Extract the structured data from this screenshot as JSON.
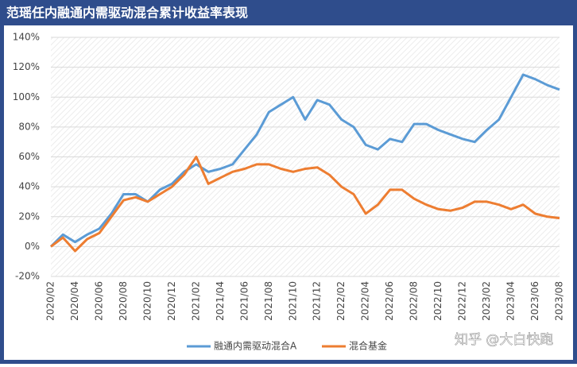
{
  "chart_data": {
    "type": "line",
    "title": "范瑶任内融通内需驱动混合累计收益率表现",
    "categories": [
      "2020/02",
      null,
      "2020/04",
      null,
      "2020/06",
      null,
      "2020/08",
      null,
      "2020/10",
      null,
      "2020/12",
      null,
      "2021/02",
      null,
      "2021/04",
      null,
      "2021/06",
      null,
      "2021/08",
      null,
      "2021/10",
      null,
      "2021/12",
      null,
      "2022/02",
      null,
      "2022/04",
      null,
      "2022/06",
      null,
      "2022/08",
      null,
      "2022/10",
      null,
      "2022/12",
      null,
      "2023/02",
      null,
      "2023/04",
      null,
      "2023/06",
      null,
      "2023/08"
    ],
    "series": [
      {
        "name": "融通内需驱动混合A",
        "color": "#5b9bd5",
        "values": [
          0,
          8,
          3,
          8,
          12,
          22,
          35,
          35,
          30,
          38,
          42,
          50,
          55,
          50,
          52,
          55,
          65,
          75,
          90,
          95,
          100,
          85,
          98,
          95,
          85,
          80,
          68,
          65,
          72,
          70,
          82,
          82,
          78,
          75,
          72,
          70,
          78,
          85,
          100,
          115,
          112,
          108,
          105
        ]
      },
      {
        "name": "混合基金",
        "color": "#ed7d31",
        "values": [
          0,
          6,
          -3,
          5,
          9,
          20,
          31,
          33,
          30,
          35,
          40,
          48,
          60,
          42,
          46,
          50,
          52,
          55,
          55,
          52,
          50,
          52,
          53,
          48,
          40,
          35,
          22,
          28,
          38,
          38,
          32,
          28,
          25,
          24,
          26,
          30,
          30,
          28,
          25,
          28,
          22,
          20,
          19
        ]
      }
    ],
    "ylim": [
      -20,
      140
    ],
    "yticks": [
      {
        "value": -20,
        "label": "-20%"
      },
      {
        "value": 0,
        "label": "0%"
      },
      {
        "value": 20,
        "label": "20%"
      },
      {
        "value": 40,
        "label": "40%"
      },
      {
        "value": 60,
        "label": "60%"
      },
      {
        "value": 80,
        "label": "80%"
      },
      {
        "value": 100,
        "label": "100%"
      },
      {
        "value": 120,
        "label": "120%"
      },
      {
        "value": 140,
        "label": "140%"
      }
    ],
    "grid": true,
    "legend": "bottom",
    "watermark": "知乎 @大白快跑"
  }
}
